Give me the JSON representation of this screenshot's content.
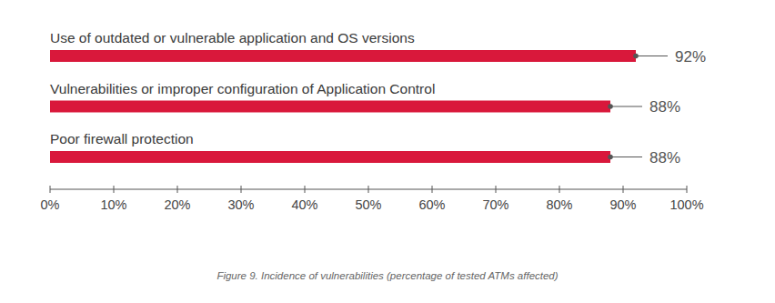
{
  "chart_data": {
    "type": "bar",
    "orientation": "horizontal",
    "title": "Figure 9. Incidence of vulnerabilities (percentage of tested ATMs affected)",
    "categories": [
      "Use of outdated or vulnerable application and OS versions",
      "Vulnerabilities or improper configuration of Application Control",
      "Poor firewall protection"
    ],
    "values": [
      92,
      88,
      88
    ],
    "value_labels": [
      "92%",
      "88%",
      "88%"
    ],
    "data_labels": true,
    "color": "#d9183b",
    "xlim": [
      0,
      100
    ],
    "xticks": [
      {
        "value": 0,
        "label": "0%"
      },
      {
        "value": 10,
        "label": "10%"
      },
      {
        "value": 20,
        "label": "20%"
      },
      {
        "value": 30,
        "label": "30%"
      },
      {
        "value": 40,
        "label": "40%"
      },
      {
        "value": 50,
        "label": "50%"
      },
      {
        "value": 60,
        "label": "60%"
      },
      {
        "value": 70,
        "label": "70%"
      },
      {
        "value": 80,
        "label": "80%"
      },
      {
        "value": 90,
        "label": "90%"
      },
      {
        "value": 100,
        "label": "100%"
      }
    ]
  }
}
